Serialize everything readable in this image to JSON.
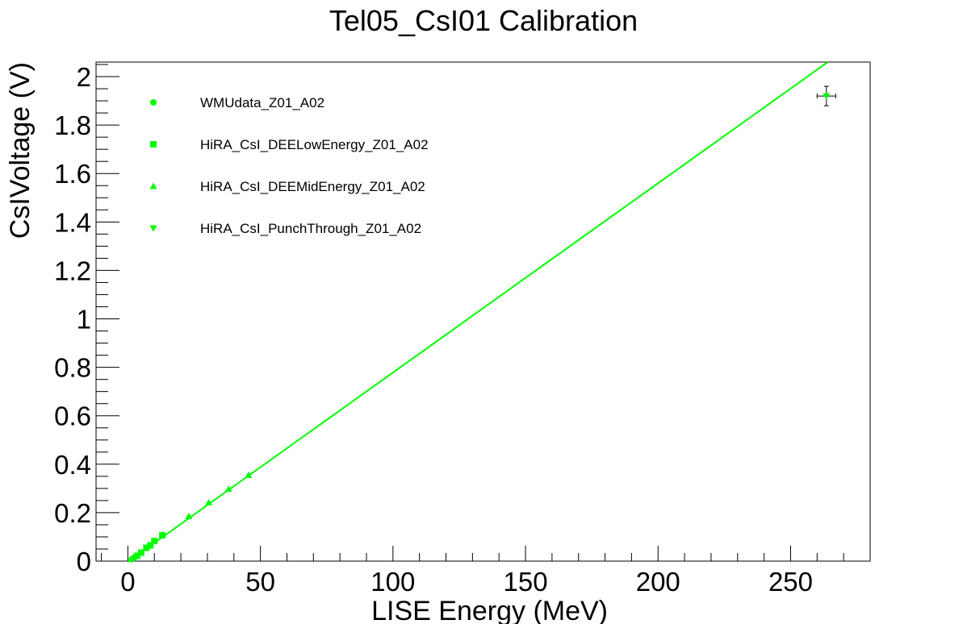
{
  "chart_data": {
    "type": "scatter",
    "title": "Tel05_CsI01 Calibration",
    "xlabel": "LISE Energy (MeV)",
    "ylabel": "CsIVoltage (V)",
    "xlim": [
      -12,
      280
    ],
    "ylim": [
      0,
      2.06
    ],
    "x_ticks": [
      0,
      50,
      100,
      150,
      200,
      250
    ],
    "y_ticks": [
      0,
      0.2,
      0.4,
      0.6,
      0.8,
      1,
      1.2,
      1.4,
      1.6,
      1.8,
      2
    ],
    "x_tick_labels": [
      "0",
      "50",
      "100",
      "150",
      "200",
      "250"
    ],
    "y_tick_labels": [
      "0",
      "0.2",
      "0.4",
      "0.6",
      "0.8",
      "1",
      "1.2",
      "1.4",
      "1.6",
      "1.8",
      "2"
    ],
    "grid": false,
    "legend_position": "top-left",
    "color": "#00ff00",
    "series": [
      {
        "name": "WMUdata_Z01_A02",
        "marker": "circle",
        "points": [
          [
            1.5,
            0.008
          ],
          [
            2.5,
            0.016
          ]
        ]
      },
      {
        "name": "HiRA_CsI_DEELowEnergy_Z01_A02",
        "marker": "square",
        "points": [
          [
            3.5,
            0.022
          ],
          [
            5.0,
            0.035
          ],
          [
            7.0,
            0.055
          ],
          [
            8.5,
            0.065
          ],
          [
            10.0,
            0.083
          ],
          [
            13.0,
            0.107
          ]
        ]
      },
      {
        "name": "HiRA_CsI_DEEMidEnergy_Z01_A02",
        "marker": "triangle-up",
        "points": [
          [
            23.0,
            0.185
          ],
          [
            30.5,
            0.242
          ],
          [
            38.0,
            0.298
          ],
          [
            45.5,
            0.355
          ]
        ]
      },
      {
        "name": "HiRA_CsI_PunchThrough_Z01_A02",
        "marker": "triangle-down",
        "points": [
          [
            263.5,
            1.92
          ]
        ],
        "x_error": 3.5,
        "y_error": 0.04
      }
    ],
    "fit_line": {
      "x": [
        0,
        264
      ],
      "y": [
        -0.003,
        2.06
      ]
    }
  }
}
